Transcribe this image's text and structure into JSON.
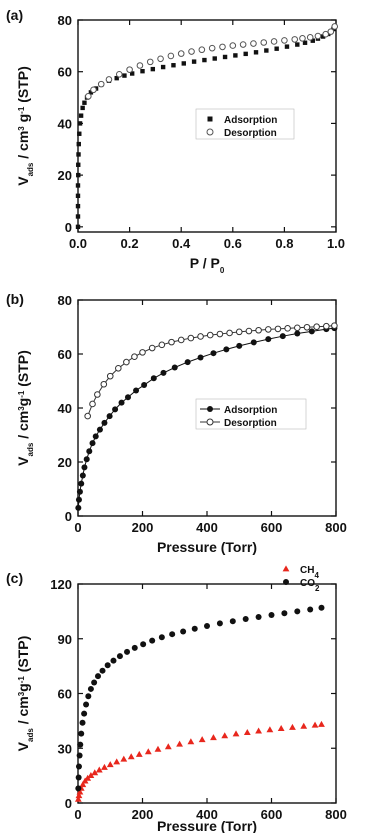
{
  "chart_data": [
    {
      "type": "scatter",
      "panel_label": "(a)",
      "xlabel": "P / P",
      "xlabel_sub": "0",
      "ylabel": "V",
      "ylabel_sub": "ads",
      "ylabel_rest": " / cm",
      "ylabel_sup": "3",
      "ylabel_tail": " g",
      "ylabel_sup2": "-1",
      "ylabel_end": " (STP)",
      "xlim": [
        0.0,
        1.0
      ],
      "ylim": [
        -2,
        80
      ],
      "xticks": [
        0.0,
        0.2,
        0.4,
        0.6,
        0.8,
        1.0
      ],
      "xtick_labels": [
        "0.0",
        "0.2",
        "0.4",
        "0.6",
        "0.8",
        "1.0"
      ],
      "yticks": [
        0,
        20,
        40,
        60,
        80
      ],
      "ytick_labels": [
        "0",
        "20",
        "40",
        "60",
        "80"
      ],
      "legend_position": "center-right",
      "series": [
        {
          "name": "Adsorption",
          "marker": "filled-square",
          "color": "#111111",
          "x": [
            0.0,
            0.0,
            0.0,
            0.0,
            0.0,
            0.001,
            0.001,
            0.002,
            0.003,
            0.005,
            0.008,
            0.012,
            0.018,
            0.025,
            0.035,
            0.05,
            0.07,
            0.09,
            0.12,
            0.15,
            0.18,
            0.21,
            0.25,
            0.29,
            0.33,
            0.37,
            0.41,
            0.45,
            0.49,
            0.53,
            0.57,
            0.61,
            0.65,
            0.69,
            0.73,
            0.77,
            0.81,
            0.85,
            0.88,
            0.91,
            0.93,
            0.95,
            0.97,
            0.98,
            0.99,
            0.995
          ],
          "y": [
            0,
            4,
            8,
            12,
            16,
            20,
            24,
            28,
            32,
            36,
            40,
            43,
            46,
            48,
            50,
            52,
            53.5,
            55,
            56.5,
            57.5,
            58.5,
            59.3,
            60.2,
            61,
            61.8,
            62.5,
            63.2,
            63.9,
            64.5,
            65.1,
            65.7,
            66.3,
            66.9,
            67.5,
            68.2,
            68.9,
            69.7,
            70.5,
            71.2,
            72,
            72.8,
            73.6,
            74.6,
            75.5,
            76.5,
            77.5
          ]
        },
        {
          "name": "Desorption",
          "marker": "open-circle",
          "color": "#555555",
          "x": [
            0.995,
            0.98,
            0.96,
            0.93,
            0.9,
            0.87,
            0.84,
            0.8,
            0.76,
            0.72,
            0.68,
            0.64,
            0.6,
            0.56,
            0.52,
            0.48,
            0.44,
            0.4,
            0.36,
            0.32,
            0.28,
            0.24,
            0.2,
            0.16,
            0.12,
            0.09,
            0.06,
            0.04
          ],
          "y": [
            77.5,
            75.5,
            74.5,
            73.8,
            73.3,
            72.9,
            72.5,
            72.1,
            71.7,
            71.3,
            70.9,
            70.5,
            70.1,
            69.6,
            69.1,
            68.5,
            67.8,
            67,
            66.1,
            65,
            63.8,
            62.4,
            60.8,
            59,
            57,
            55.2,
            53,
            50.5
          ]
        }
      ]
    },
    {
      "type": "scatter",
      "panel_label": "(b)",
      "xlabel": "Pressure (Torr)",
      "ylabel": "V",
      "ylabel_sub": "ads",
      "ylabel_rest": " / cm",
      "ylabel_sup": "3",
      "ylabel_tail": "g",
      "ylabel_sup2": "-1",
      "ylabel_end": " (STP)",
      "xlim": [
        0,
        800
      ],
      "ylim": [
        0,
        80
      ],
      "xticks": [
        0,
        200,
        400,
        600,
        800
      ],
      "xtick_labels": [
        "0",
        "200",
        "400",
        "600",
        "800"
      ],
      "yticks": [
        0,
        20,
        40,
        60,
        80
      ],
      "ytick_labels": [
        "0",
        "20",
        "40",
        "60",
        "80"
      ],
      "legend_position": "center-right",
      "series": [
        {
          "name": "Adsorption",
          "marker": "filled-circle-line",
          "color": "#111111",
          "x": [
            1,
            3,
            6,
            10,
            15,
            20,
            27,
            35,
            45,
            55,
            68,
            82,
            98,
            115,
            135,
            155,
            180,
            205,
            235,
            265,
            300,
            340,
            380,
            420,
            460,
            500,
            545,
            590,
            635,
            680,
            725,
            770,
            795
          ],
          "y": [
            3,
            6,
            9,
            12,
            15,
            18,
            21,
            24,
            27,
            29.5,
            32,
            34.5,
            37,
            39.5,
            42,
            44,
            46.5,
            48.5,
            51,
            53,
            55,
            57,
            58.7,
            60.3,
            61.7,
            63,
            64.3,
            65.5,
            66.6,
            67.6,
            68.4,
            69.2,
            69.6
          ]
        },
        {
          "name": "Desorption",
          "marker": "open-circle-line",
          "color": "#333333",
          "x": [
            795,
            770,
            740,
            710,
            680,
            650,
            620,
            590,
            560,
            530,
            500,
            470,
            440,
            410,
            380,
            350,
            320,
            290,
            260,
            230,
            200,
            175,
            150,
            125,
            100,
            80,
            60,
            45,
            30
          ],
          "y": [
            70.5,
            70.3,
            70.1,
            69.9,
            69.7,
            69.5,
            69.3,
            69.1,
            68.8,
            68.5,
            68.2,
            67.8,
            67.4,
            67,
            66.5,
            65.9,
            65.2,
            64.4,
            63.4,
            62.2,
            60.6,
            59,
            57,
            54.7,
            51.8,
            48.8,
            45,
            41.5,
            37
          ]
        }
      ]
    },
    {
      "type": "scatter",
      "panel_label": "(c)",
      "xlabel": "Pressure (Torr)",
      "ylabel": "V",
      "ylabel_sub": "ads",
      "ylabel_rest": " / cm",
      "ylabel_sup": "3",
      "ylabel_tail": "g",
      "ylabel_sup2": "-1",
      "ylabel_end": " (STP)",
      "xlim": [
        0,
        800
      ],
      "ylim": [
        0,
        120
      ],
      "xticks": [
        0,
        200,
        400,
        600,
        800
      ],
      "xtick_labels": [
        "0",
        "200",
        "400",
        "600",
        "800"
      ],
      "yticks": [
        0,
        30,
        60,
        90,
        120
      ],
      "ytick_labels": [
        "0",
        "30",
        "60",
        "90",
        "120"
      ],
      "legend_position": "top-right",
      "series": [
        {
          "name": "CH",
          "name_sub": "4",
          "marker": "filled-triangle",
          "color": "#e8271d",
          "x": [
            1,
            3,
            6,
            10,
            15,
            22,
            30,
            40,
            52,
            66,
            82,
            100,
            120,
            142,
            165,
            190,
            218,
            248,
            280,
            315,
            350,
            385,
            420,
            455,
            490,
            525,
            560,
            595,
            630,
            665,
            700,
            735,
            755
          ],
          "y": [
            2,
            4,
            6,
            8,
            10,
            12,
            13.5,
            15,
            16.5,
            18,
            19.5,
            21,
            22.5,
            24,
            25.3,
            26.6,
            28,
            29.4,
            30.8,
            32.2,
            33.5,
            34.7,
            35.8,
            36.8,
            37.8,
            38.6,
            39.4,
            40.1,
            40.8,
            41.4,
            42,
            42.6,
            43
          ]
        },
        {
          "name": "CO",
          "name_sub": "2",
          "marker": "filled-circle",
          "color": "#111111",
          "x": [
            1,
            2,
            3,
            5,
            7,
            10,
            14,
            19,
            25,
            32,
            40,
            50,
            62,
            76,
            92,
            110,
            130,
            152,
            176,
            202,
            230,
            260,
            292,
            326,
            362,
            400,
            440,
            480,
            520,
            560,
            600,
            640,
            680,
            720,
            755
          ],
          "y": [
            8,
            14,
            20,
            26,
            32,
            38,
            44,
            49,
            54,
            58.5,
            62.5,
            66,
            69.5,
            72.5,
            75.5,
            78,
            80.5,
            82.8,
            85,
            87,
            89,
            90.8,
            92.5,
            94,
            95.5,
            97,
            98.4,
            99.6,
            100.8,
            101.9,
            103,
            104,
            105,
            106,
            107
          ]
        }
      ]
    }
  ]
}
